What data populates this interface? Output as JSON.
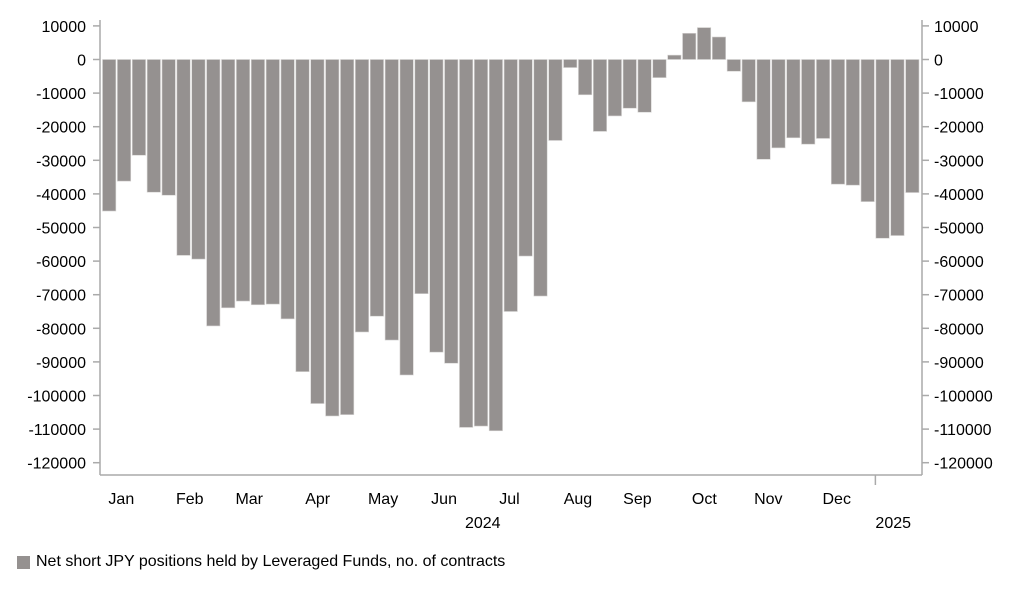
{
  "chart_data": {
    "type": "bar",
    "title": "",
    "series": [
      {
        "name": "Net short JPY positions held by Leveraged Funds, no. of contracts",
        "color": "#959190",
        "values": [
          -45100,
          -36200,
          -28500,
          -39500,
          -40400,
          -58300,
          -59400,
          -79300,
          -73900,
          -71900,
          -73000,
          -72800,
          -77200,
          -92900,
          -102400,
          -106100,
          -105700,
          -81100,
          -76400,
          -83500,
          -93900,
          -69700,
          -87100,
          -90400,
          -109500,
          -109100,
          -110500,
          -75000,
          -58500,
          -70400,
          -24100,
          -2400,
          -10500,
          -21400,
          -16800,
          -14500,
          -15700,
          -5400,
          1300,
          7800,
          9500,
          6700,
          -3500,
          -12600,
          -29700,
          -26300,
          -23300,
          -25200,
          -23500,
          -37100,
          -37400,
          -42300,
          -53200,
          -52400,
          -39600
        ]
      }
    ],
    "ylim": [
      -125000,
      12000
    ],
    "yticks": [
      10000,
      0,
      -10000,
      -20000,
      -30000,
      -40000,
      -50000,
      -60000,
      -70000,
      -80000,
      -90000,
      -100000,
      -110000,
      -120000
    ],
    "month_labels": [
      {
        "label": "Jan",
        "bar_index": 1.3
      },
      {
        "label": "Feb",
        "bar_index": 5.9
      },
      {
        "label": "Mar",
        "bar_index": 9.9
      },
      {
        "label": "Apr",
        "bar_index": 14.5
      },
      {
        "label": "May",
        "bar_index": 18.9
      },
      {
        "label": "Jun",
        "bar_index": 23
      },
      {
        "label": "Jul",
        "bar_index": 27.4
      },
      {
        "label": "Aug",
        "bar_index": 32
      },
      {
        "label": "Sep",
        "bar_index": 36
      },
      {
        "label": "Oct",
        "bar_index": 40.5
      },
      {
        "label": "Nov",
        "bar_index": 44.8
      },
      {
        "label": "Dec",
        "bar_index": 49.4
      }
    ],
    "year_labels": [
      {
        "label": "2024",
        "bar_index": 25.6
      },
      {
        "label": "2025",
        "bar_index": 53.2
      }
    ],
    "year_divider_bar_index": 52,
    "legend": "bottom-left",
    "grid": false
  }
}
